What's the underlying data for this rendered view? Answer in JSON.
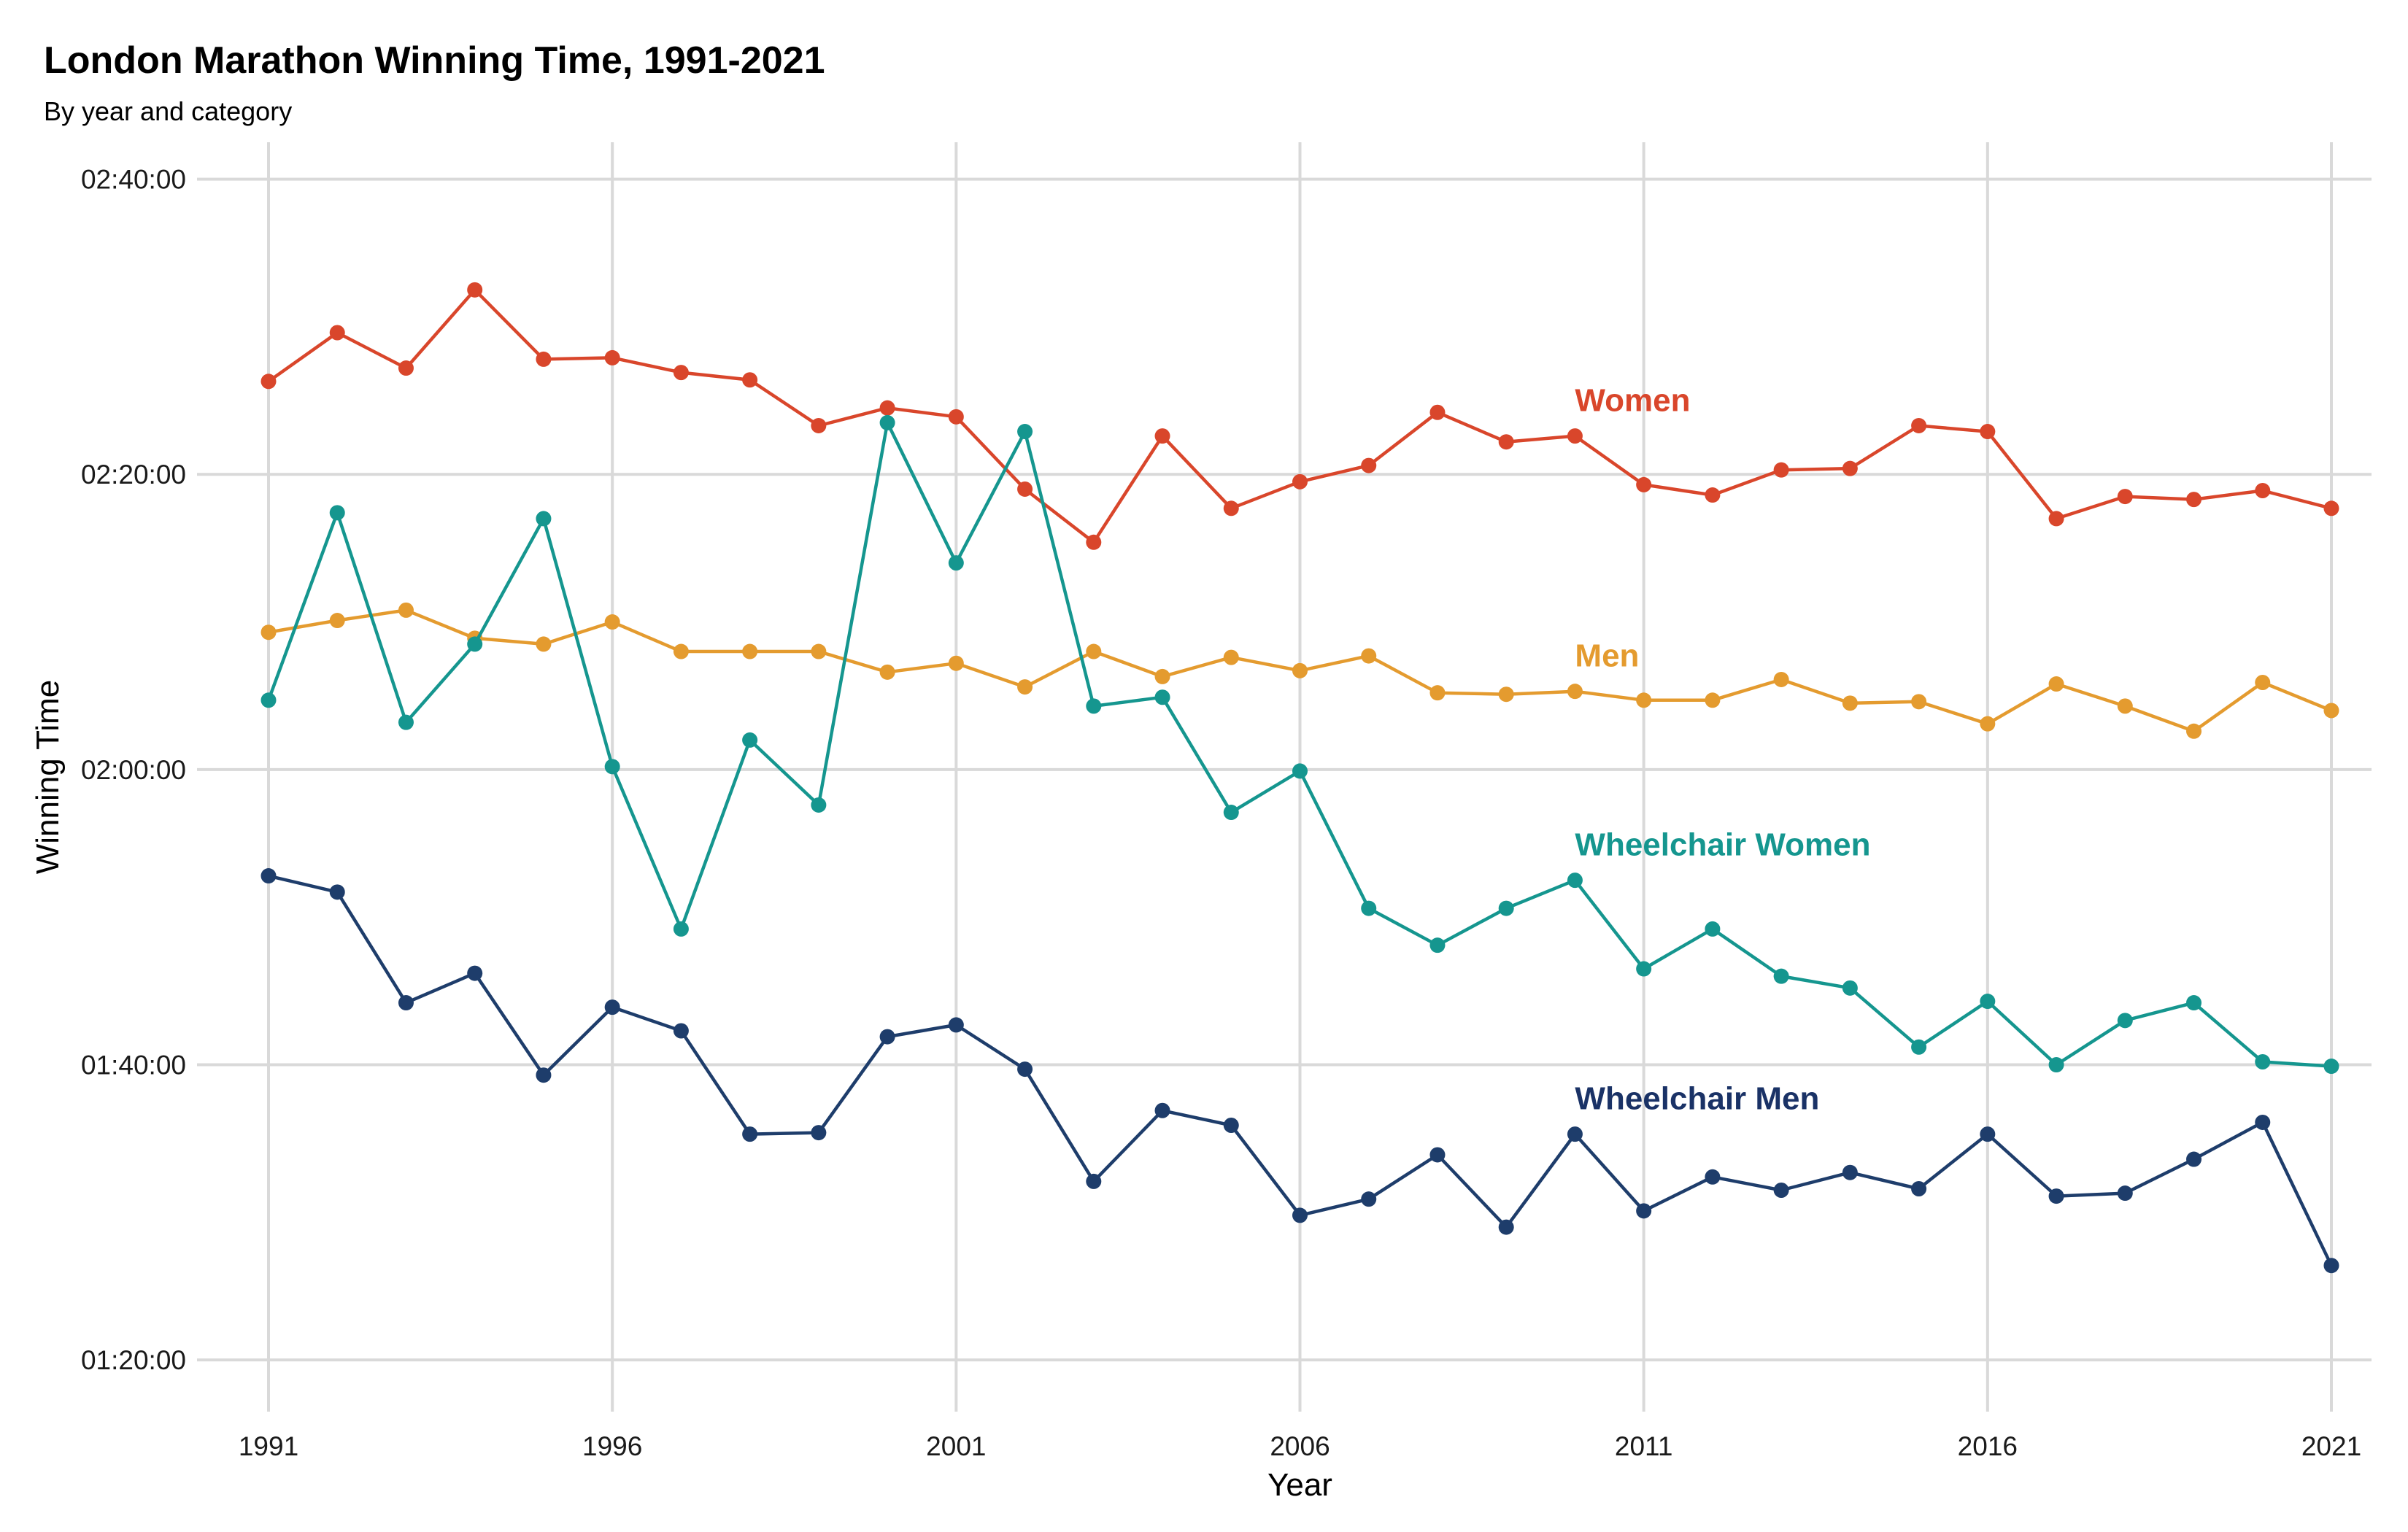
{
  "chart_data": {
    "type": "line",
    "title": "London Marathon Winning Time, 1991-2021",
    "subtitle": "By year and category",
    "xlabel": "Year",
    "ylabel": "Winning Time",
    "x_ticks": [
      "1991",
      "1996",
      "2001",
      "2006",
      "2011",
      "2016",
      "2021"
    ],
    "y_ticks": [
      "01:20:00",
      "01:40:00",
      "02:00:00",
      "02:20:00",
      "02:40:00"
    ],
    "y_tick_minutes": [
      80,
      100,
      120,
      140,
      160
    ],
    "xlim": [
      1991,
      2021
    ],
    "ylim_minutes": [
      76.5,
      162.5
    ],
    "grid": true,
    "legend": "direct labels",
    "x": [
      1991,
      1992,
      1993,
      1994,
      1995,
      1996,
      1997,
      1998,
      1999,
      2000,
      2001,
      2002,
      2003,
      2004,
      2005,
      2006,
      2007,
      2008,
      2009,
      2010,
      2011,
      2012,
      2013,
      2014,
      2015,
      2016,
      2017,
      2018,
      2019,
      2020,
      2021
    ],
    "series": [
      {
        "name": "Women",
        "color": "#d9462b",
        "values_minutes": [
          146.3,
          149.6,
          147.2,
          152.5,
          147.8,
          147.9,
          146.9,
          146.4,
          143.3,
          144.5,
          143.9,
          139.0,
          135.4,
          142.6,
          137.7,
          139.5,
          140.6,
          144.2,
          142.2,
          142.6,
          139.3,
          138.6,
          140.3,
          140.4,
          143.3,
          142.9,
          137.0,
          138.5,
          138.3,
          138.9,
          137.7
        ]
      },
      {
        "name": "Men",
        "color": "#e49b2f",
        "values_minutes": [
          129.3,
          130.1,
          130.8,
          128.9,
          128.5,
          130.0,
          128.0,
          128.0,
          128.0,
          126.6,
          127.2,
          125.6,
          128.0,
          126.3,
          127.6,
          126.7,
          127.7,
          125.2,
          125.1,
          125.3,
          124.7,
          124.7,
          126.1,
          124.5,
          124.6,
          123.1,
          125.8,
          124.3,
          122.6,
          125.9,
          124.0
        ]
      },
      {
        "name": "Wheelchair Women",
        "color": "#15968f",
        "values_minutes": [
          124.7,
          137.4,
          123.2,
          128.5,
          137.0,
          120.2,
          109.2,
          122.0,
          117.6,
          143.5,
          134.0,
          142.9,
          124.3,
          124.9,
          117.1,
          119.9,
          110.6,
          108.1,
          110.6,
          112.5,
          106.5,
          109.2,
          106.0,
          105.2,
          101.2,
          104.3,
          100.0,
          103.0,
          104.2,
          100.2,
          99.9
        ]
      },
      {
        "name": "Wheelchair Men",
        "color": "#1e3d6b",
        "labelColor": "#1a3266",
        "values_minutes": [
          112.8,
          111.7,
          104.2,
          106.2,
          99.3,
          103.9,
          102.3,
          95.3,
          95.4,
          101.9,
          102.7,
          99.7,
          92.1,
          96.9,
          95.9,
          89.8,
          90.9,
          93.9,
          89.0,
          95.3,
          90.1,
          92.4,
          91.5,
          92.7,
          91.6,
          95.3,
          91.1,
          91.3,
          93.6,
          96.1,
          86.4
        ]
      }
    ]
  }
}
